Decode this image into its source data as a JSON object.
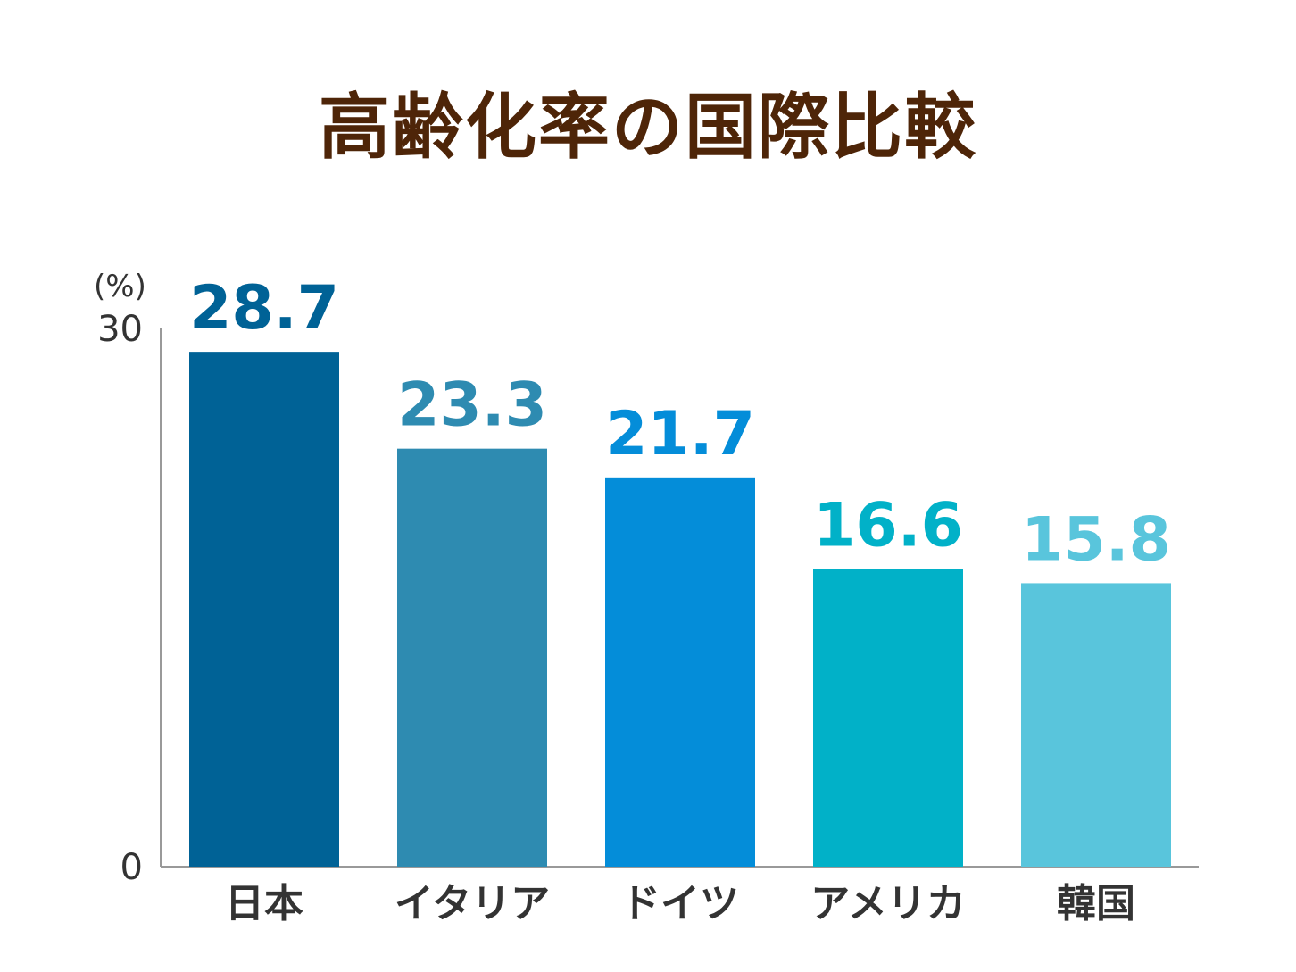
{
  "chart_data": {
    "type": "bar",
    "title": "高齢化率の国際比較",
    "unit": "(%)",
    "categories": [
      "日本",
      "イタリア",
      "ドイツ",
      "アメリカ",
      "韓国"
    ],
    "values": [
      28.7,
      23.3,
      21.7,
      16.6,
      15.8
    ],
    "value_labels": [
      "28.7",
      "23.3",
      "21.7",
      "16.6",
      "15.8"
    ],
    "colors": [
      "#006296",
      "#2e8bb1",
      "#048dd9",
      "#01b1c8",
      "#59c5dc"
    ],
    "ylim": [
      0,
      30
    ],
    "yticks": [
      0,
      30
    ],
    "ytick_labels": [
      "0",
      "30"
    ],
    "grid": false,
    "legend": "none"
  }
}
